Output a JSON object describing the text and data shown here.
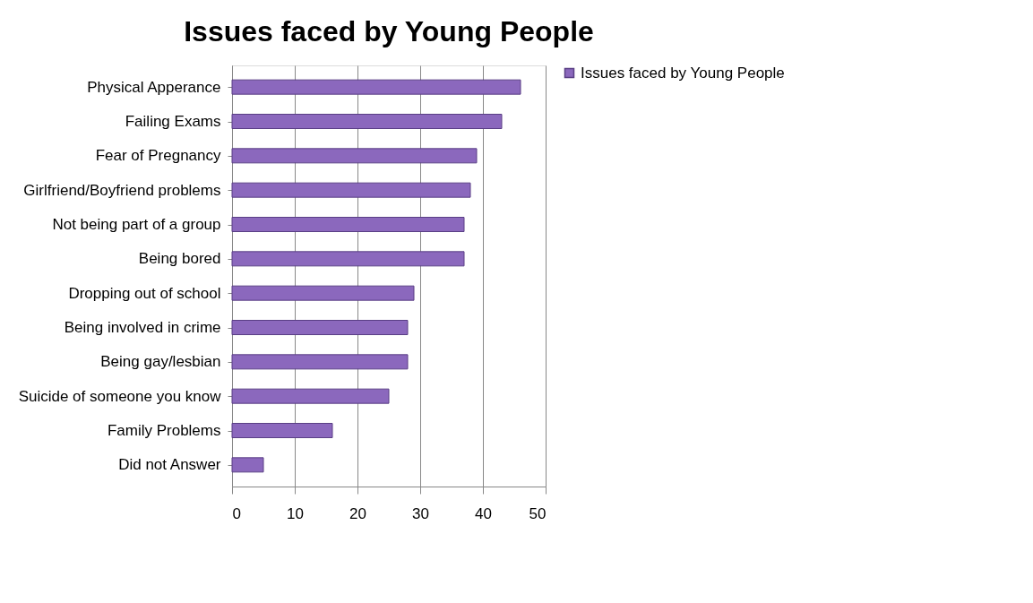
{
  "chart_data": {
    "type": "bar",
    "orientation": "horizontal",
    "title": "Issues faced by Young People",
    "categories": [
      "Physical Apperance",
      "Failing Exams",
      "Fear of Pregnancy",
      "Girlfriend/Boyfriend problems",
      "Not being part of a group",
      "Being bored",
      "Dropping out of school",
      "Being involved in crime",
      "Being gay/lesbian",
      "Suicide of someone you know",
      "Family Problems",
      "Did not Answer"
    ],
    "series": [
      {
        "name": "Issues faced by Young People",
        "color": "#8b68bd",
        "values": [
          46,
          43,
          39,
          38,
          37,
          37,
          29,
          28,
          28,
          25,
          16,
          5
        ]
      }
    ],
    "xlim": [
      0,
      50
    ],
    "xticks": [
      0,
      10,
      20,
      30,
      40,
      50
    ],
    "grid": "x",
    "legend": "right"
  }
}
